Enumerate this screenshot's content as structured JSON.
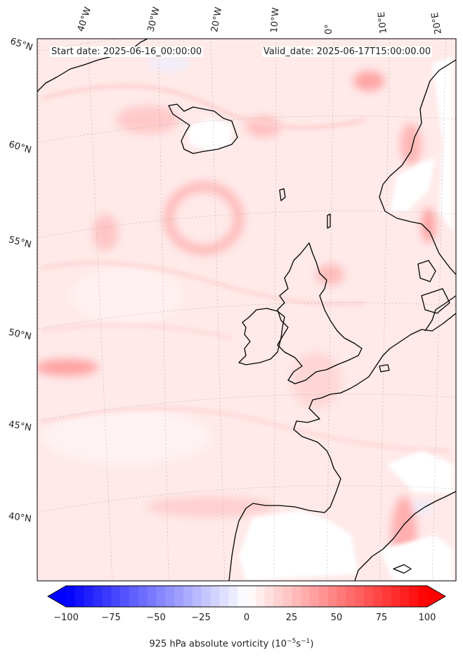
{
  "header": {
    "start": "Start date: 2025-06-16_00:00:00",
    "valid": "Valid_date: 2025-06-17T15:00:00.00"
  },
  "lon_labels": [
    "40°W",
    "30°W",
    "20°W",
    "10°W",
    "0°",
    "10°E",
    "20°E"
  ],
  "lat_labels": [
    "65°N",
    "60°N",
    "55°N",
    "50°N",
    "45°N",
    "40°N"
  ],
  "colorbar": {
    "label": "925 hPa absolute vorticity (10",
    "label_exp1": "−5",
    "label_mid": "s",
    "label_exp2": "−1",
    "label_end": ")",
    "ticks": [
      "−100",
      "−75",
      "−50",
      "−25",
      "0",
      "25",
      "50",
      "75",
      "100"
    ],
    "min": -100,
    "max": 100,
    "colors": {
      "neg": "#0000ff",
      "zero": "#ffffff",
      "pos": "#ff0000"
    }
  }
}
